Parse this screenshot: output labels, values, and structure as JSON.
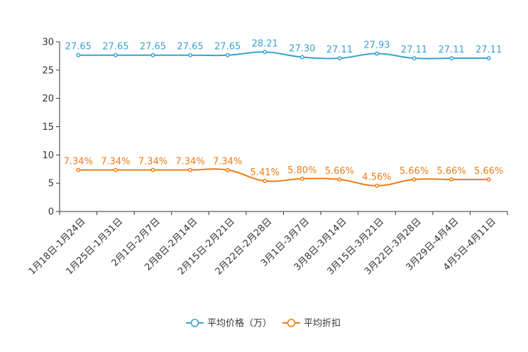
{
  "chart_data": {
    "type": "line",
    "categories": [
      "1月18日-1月24日",
      "1月25日-1月31日",
      "2月1日-2月7日",
      "2月8日-2月14日",
      "2月15日-2月21日",
      "2月22日-2月28日",
      "3月1日-3月7日",
      "3月8日-3月14日",
      "3月15日-3月21日",
      "3月22日-3月28日",
      "3月29日-4月4日",
      "4月5日-4月11日"
    ],
    "ylim": [
      0,
      30
    ],
    "yticks": [
      "0",
      "5",
      "10",
      "15",
      "20",
      "25",
      "30"
    ],
    "series": [
      {
        "name": "平均价格（万）",
        "color": "#3ba1d1",
        "values": [
          27.65,
          27.65,
          27.65,
          27.65,
          27.65,
          28.21,
          27.3,
          27.11,
          27.93,
          27.11,
          27.11,
          27.11
        ],
        "labels": [
          "27.65",
          "27.65",
          "27.65",
          "27.65",
          "27.65",
          "28.21",
          "27.30",
          "27.11",
          "27.93",
          "27.11",
          "27.11",
          "27.11"
        ]
      },
      {
        "name": "平均折扣",
        "color": "#f07c10",
        "values": [
          7.34,
          7.34,
          7.34,
          7.34,
          7.34,
          5.41,
          5.8,
          5.66,
          4.56,
          5.66,
          5.66,
          5.66
        ],
        "labels": [
          "7.34%",
          "7.34%",
          "7.34%",
          "7.34%",
          "7.34%",
          "5.41%",
          "5.80%",
          "5.66%",
          "4.56%",
          "5.66%",
          "5.66%",
          "5.66%"
        ]
      }
    ]
  }
}
